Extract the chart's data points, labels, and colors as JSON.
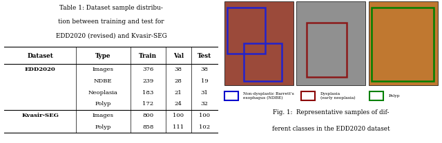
{
  "table_title": "Table 1: Dataset sample distribu-\ntion between training and test for\nEDD2020 (revised) and Kvasir-SEG",
  "col_headers": [
    "Dataset",
    "Type",
    "Train",
    "Val",
    "Test"
  ],
  "rows": [
    [
      "EDD2020",
      "Images",
      "376",
      "38",
      "38"
    ],
    [
      "",
      "NDBE",
      "239",
      "28",
      "19"
    ],
    [
      "",
      "Neoplasia",
      "183",
      "21",
      "31"
    ],
    [
      "",
      "Polyp",
      "172",
      "24",
      "32"
    ],
    [
      "Kvasir-SEG",
      "Images",
      "800",
      "100",
      "100"
    ],
    [
      "",
      "Polyp",
      "858",
      "111",
      "102"
    ]
  ],
  "legend_items": [
    {
      "label": "Non-dysplastic Barrett's\nesophagus (NDBE)",
      "color": "#0000cc"
    },
    {
      "label": "Dysplasia\n(early neoplasia)",
      "color": "#8b0000"
    },
    {
      "label": "Polyp",
      "color": "#008000"
    }
  ],
  "fig_caption": "Fig. 1:  Representative samples of dif-\nferent classes in the EDD2020 dataset",
  "background_color": "#ffffff"
}
